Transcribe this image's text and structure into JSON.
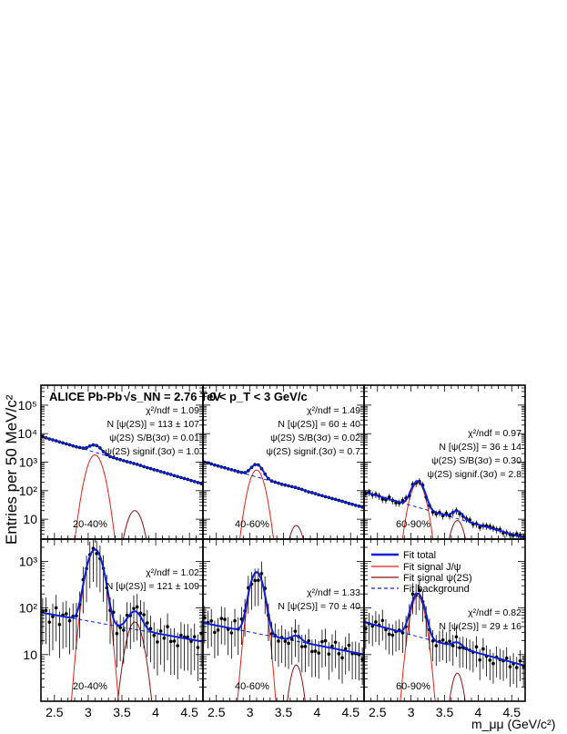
{
  "figure": {
    "y_axis_title": "Entries per 50 MeV/c²",
    "x_axis_title": "m_μμ (GeV/c²)",
    "experiment_label": "ALICE Pb-Pb",
    "energy_label": "√s_NN = 2.76 TeV",
    "pt_label": "0 < p_T < 3 GeV/c"
  },
  "legend": {
    "items": [
      {
        "label": "Fit total",
        "color": "#0b1fd6",
        "style": "solid-thick"
      },
      {
        "label": "Fit signal J/ψ",
        "color": "#e0221b",
        "style": "solid"
      },
      {
        "label": "Fit signal ψ(2S)",
        "color": "#8b1010",
        "style": "solid"
      },
      {
        "label": "Fit background",
        "color": "#0b1fd6",
        "style": "dashed"
      }
    ]
  },
  "colors": {
    "fit_total": "#0b1fd6",
    "signal_jpsi": "#e0221b",
    "signal_psi2s": "#8b1010",
    "background": "#0b1fd6",
    "data": "#000000"
  },
  "chart_data": [
    {
      "type": "line",
      "row": 1,
      "col": 1,
      "centrality": "20-40%",
      "xlim": [
        2.3,
        4.7
      ],
      "ylim": [
        2,
        500000
      ],
      "yscale": "log",
      "x_ticks": [
        "2.5",
        "3",
        "3.5",
        "4",
        "4.5"
      ],
      "y_ticks": [
        "10",
        "10²",
        "10³",
        "10⁴",
        "10⁵"
      ],
      "stats": [
        "χ²/ndf = 1.09",
        "N [ψ(2S)] = 113 ± 107",
        "ψ(2S) S/B(3σ) = 0.01",
        "ψ(2S) signif.(3σ) = 1.0"
      ],
      "model": {
        "bkg_a": 8000,
        "bkg_b": 1.6,
        "jpsi_n": 1800,
        "jpsi_mu": 3.1,
        "jpsi_sigma": 0.08,
        "psi_n": 20,
        "psi_mu": 3.69,
        "psi_sigma": 0.08,
        "floor": 0.5
      },
      "rel_err": 0.06,
      "cap_x": 4.7
    },
    {
      "type": "line",
      "row": 1,
      "col": 2,
      "centrality": "40-60%",
      "xlim": [
        2.3,
        4.7
      ],
      "ylim": [
        2,
        500000
      ],
      "yscale": "log",
      "x_ticks": [
        "2.5",
        "3",
        "3.5",
        "4",
        "4.5"
      ],
      "y_ticks": [],
      "stats": [
        "χ²/ndf = 1.49",
        "N [ψ(2S)] = 60 ± 40",
        "ψ(2S) S/B(3σ) = 0.02",
        "ψ(2S) signif.(3σ) = 0.7"
      ],
      "model": {
        "bkg_a": 1050,
        "bkg_b": 1.55,
        "jpsi_n": 530,
        "jpsi_mu": 3.1,
        "jpsi_sigma": 0.075,
        "psi_n": 6,
        "psi_mu": 3.69,
        "psi_sigma": 0.07,
        "floor": 0.5
      },
      "rel_err": 0.12,
      "cap_x": 4.7
    },
    {
      "type": "line",
      "row": 1,
      "col": 3,
      "centrality": "60-90%",
      "xlim": [
        2.3,
        4.7
      ],
      "ylim": [
        2,
        500000
      ],
      "yscale": "log",
      "x_ticks": [
        "2.5",
        "3",
        "3.5",
        "4",
        "4.5"
      ],
      "y_ticks": [],
      "stats": [
        "χ²/ndf = 0.97",
        "N [ψ(2S)] = 36 ± 14",
        "ψ(2S) S/B(3σ) = 0.30",
        "ψ(2S) signif.(3σ) = 2.8"
      ],
      "model": {
        "bkg_a": 90,
        "bkg_b": 1.55,
        "jpsi_n": 190,
        "jpsi_mu": 3.1,
        "jpsi_sigma": 0.075,
        "psi_n": 9,
        "psi_mu": 3.69,
        "psi_sigma": 0.07,
        "floor": 0.5
      },
      "rel_err": 0.3,
      "cap_x": 4.7
    },
    {
      "type": "line",
      "row": 2,
      "col": 1,
      "centrality": "20-40%",
      "xlim": [
        2.3,
        4.7
      ],
      "ylim": [
        1,
        3000
      ],
      "yscale": "log",
      "x_ticks": [
        "2.5",
        "3",
        "3.5",
        "4",
        "4.5"
      ],
      "y_ticks": [
        "10",
        "10²",
        "10³"
      ],
      "stats": [
        "χ²/ndf = 1.02",
        "N [ψ(2S)] = 121 ± 109"
      ],
      "model": {
        "bkg_a": 80,
        "bkg_b": 0.6,
        "jpsi_n": 1750,
        "jpsi_mu": 3.1,
        "jpsi_sigma": 0.09,
        "psi_n": 50,
        "psi_mu": 3.69,
        "psi_sigma": 0.09,
        "floor": 0.5
      },
      "rel_err": 0.9,
      "cap_x": 4.7
    },
    {
      "type": "line",
      "row": 2,
      "col": 2,
      "centrality": "40-60%",
      "xlim": [
        2.3,
        4.7
      ],
      "ylim": [
        1,
        3000
      ],
      "yscale": "log",
      "x_ticks": [
        "2.5",
        "3",
        "3.5",
        "4",
        "4.5"
      ],
      "y_ticks": [],
      "stats": [
        "χ²/ndf = 1.33",
        "N [ψ(2S)] = 70 ± 40"
      ],
      "model": {
        "bkg_a": 48,
        "bkg_b": 0.65,
        "jpsi_n": 560,
        "jpsi_mu": 3.1,
        "jpsi_sigma": 0.08,
        "psi_n": 6,
        "psi_mu": 3.69,
        "psi_sigma": 0.07,
        "floor": 0.5
      },
      "rel_err": 0.8,
      "cap_x": 4.7
    },
    {
      "type": "line",
      "row": 2,
      "col": 3,
      "centrality": "60-90%",
      "xlim": [
        2.3,
        4.7
      ],
      "ylim": [
        1,
        3000
      ],
      "yscale": "log",
      "x_ticks": [
        "2.5",
        "3",
        "3.5",
        "4",
        "4.5"
      ],
      "y_ticks": [],
      "stats": [
        "χ²/ndf = 0.82",
        "N [ψ(2S)] = 29 ± 16"
      ],
      "model": {
        "bkg_a": 50,
        "bkg_b": 0.9,
        "jpsi_n": 180,
        "jpsi_mu": 3.1,
        "jpsi_sigma": 0.08,
        "psi_n": 4,
        "psi_mu": 3.69,
        "psi_sigma": 0.07,
        "floor": 0.5
      },
      "rel_err": 0.7,
      "cap_x": 4.7
    }
  ]
}
